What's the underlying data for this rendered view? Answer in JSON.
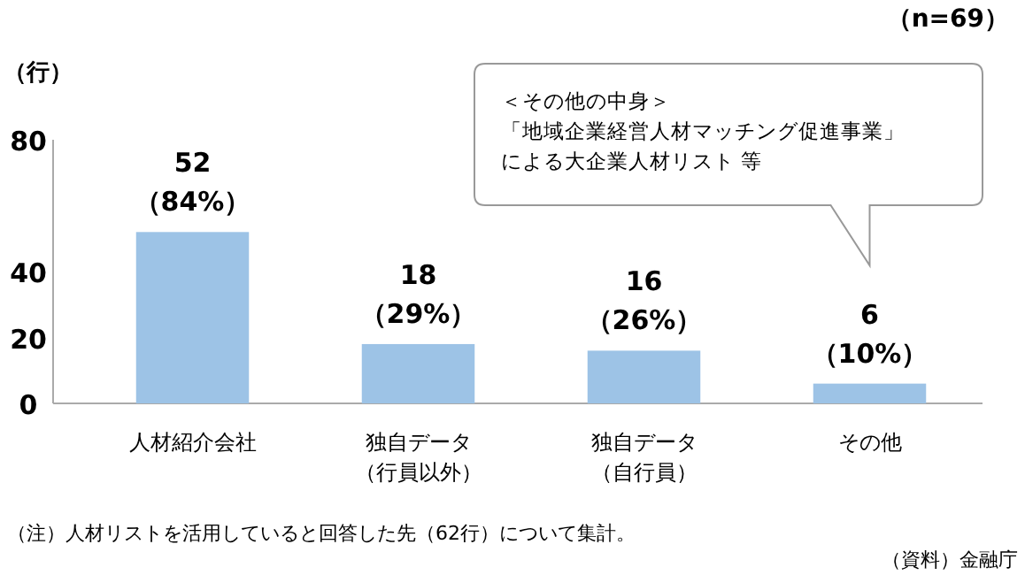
{
  "chart_data": {
    "type": "bar",
    "ylabel": "（行）",
    "categories": [
      "人材紹介会社",
      "独自データ（行員以外）",
      "独自データ（自行員）",
      "その他"
    ],
    "values": [
      52,
      18,
      16,
      6
    ],
    "color": "#9dc3e6",
    "value_labels": [
      "52\n（84%）",
      "18\n（29%）",
      "16\n（26%）",
      "6\n（10%）"
    ],
    "ylim": [
      0,
      80
    ],
    "yticks": [
      0,
      20,
      40,
      80
    ],
    "grid": false,
    "annotations": [
      "（n=69）",
      "＜その他の中身＞「地域企業経営人材マッチング促進事業」による大企業人材リスト 等",
      "（注）人材リストを活用していると回答した先（62行）について集計。",
      "（資料）金融庁"
    ]
  }
}
